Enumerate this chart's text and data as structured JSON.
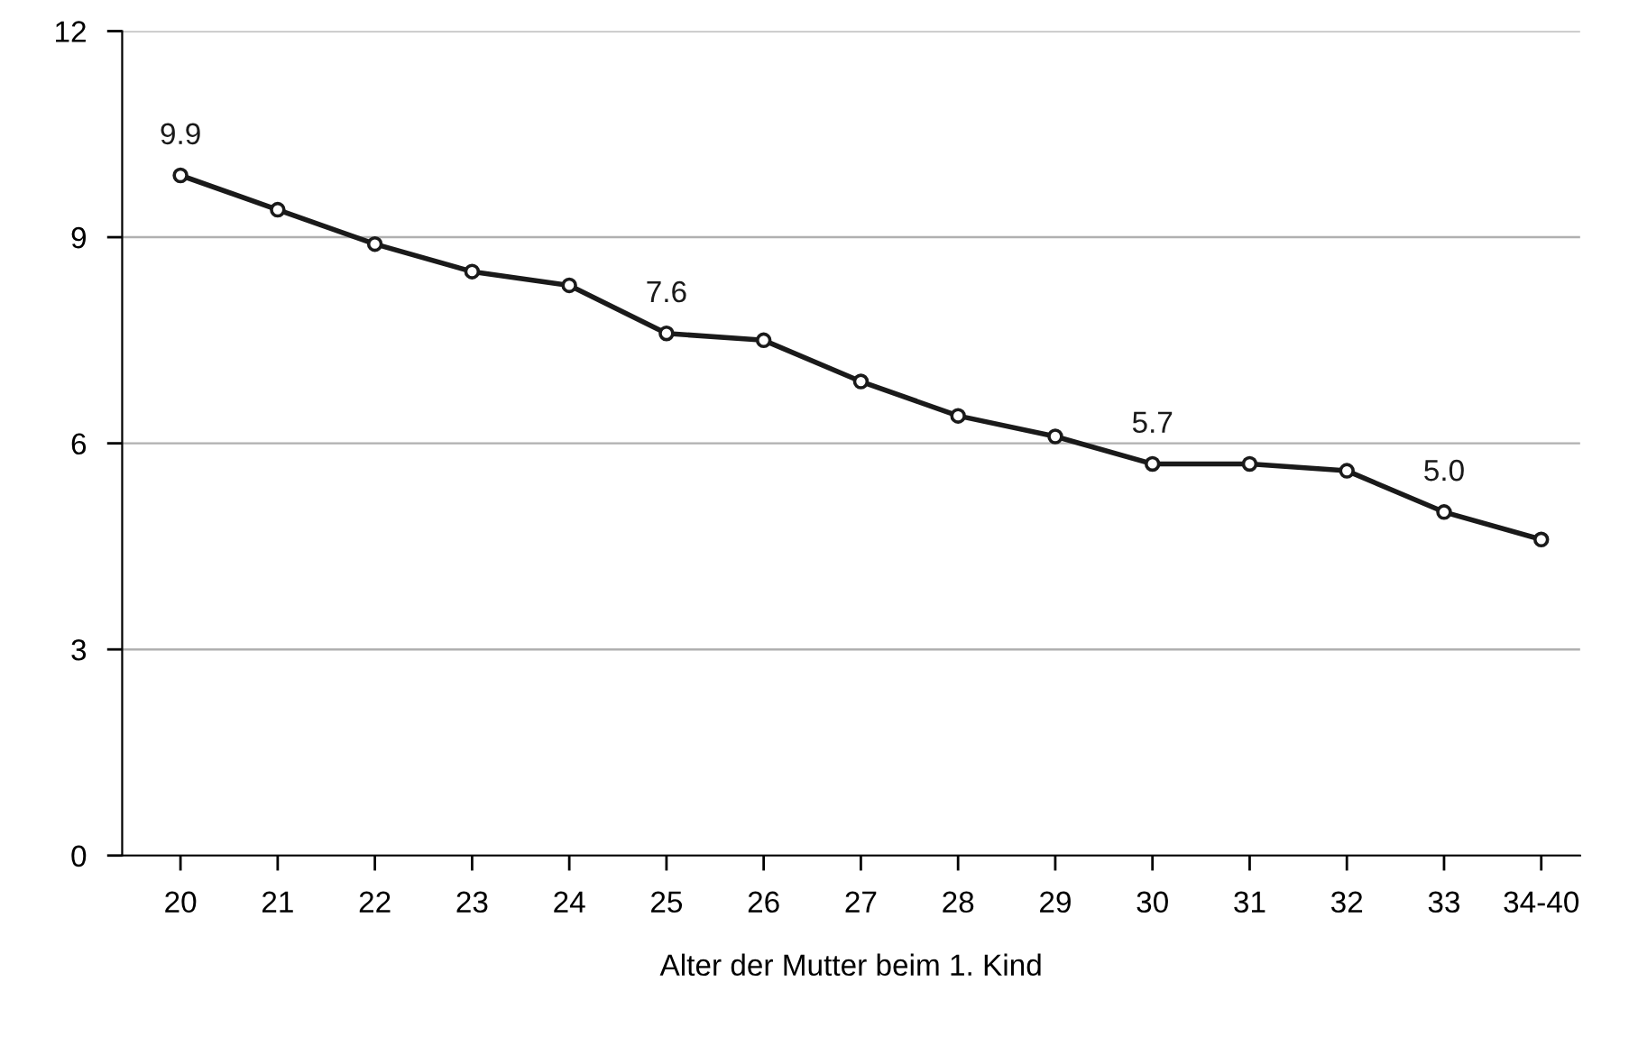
{
  "chart_data": {
    "type": "line",
    "xlabel": "Alter der Mutter beim 1. Kind",
    "categories": [
      "20",
      "21",
      "22",
      "23",
      "24",
      "25",
      "26",
      "27",
      "28",
      "29",
      "30",
      "31",
      "32",
      "33",
      "34-40"
    ],
    "series": [
      {
        "color": "#1a1a1a",
        "values": [
          9.9,
          9.4,
          8.9,
          8.5,
          8.3,
          7.6,
          7.5,
          6.9,
          6.4,
          6.1,
          5.7,
          5.7,
          5.6,
          5.0,
          4.6
        ],
        "value_labels": [
          "9.9",
          null,
          null,
          null,
          null,
          "7.6",
          null,
          null,
          null,
          null,
          "5.7",
          null,
          null,
          "5.0",
          null
        ]
      }
    ],
    "ylim": [
      0,
      12
    ],
    "yticks": [
      0,
      3,
      6,
      9,
      12
    ],
    "grid": "y",
    "marker": "circle",
    "line_style": "solid"
  }
}
